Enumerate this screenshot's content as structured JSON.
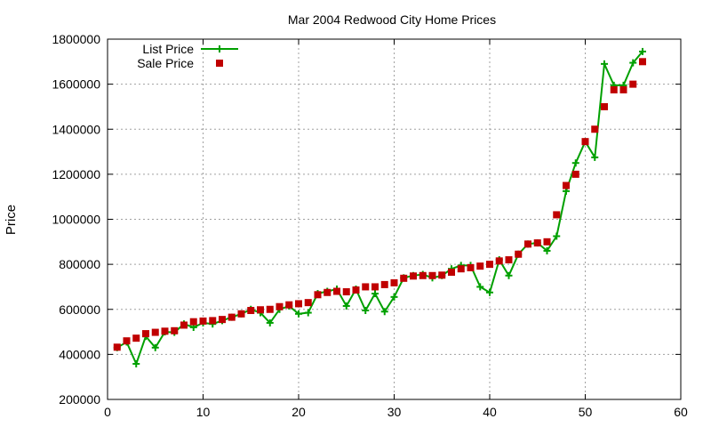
{
  "chart_data": {
    "type": "scatter",
    "title": "Mar 2004 Redwood City Home Prices",
    "xlabel": "",
    "ylabel": "Price",
    "xlim": [
      0,
      60
    ],
    "ylim": [
      200000,
      1800000
    ],
    "x_ticks": [
      "0",
      "10",
      "20",
      "30",
      "40",
      "50",
      "60"
    ],
    "y_ticks": [
      "200000",
      "400000",
      "600000",
      "800000",
      "1000000",
      "1200000",
      "1400000",
      "1600000",
      "1800000"
    ],
    "grid": true,
    "legend_position": "top-left",
    "series": [
      {
        "name": "List Price",
        "style": "line+cross",
        "color": "#00a000",
        "x": [
          1,
          2,
          3,
          4,
          5,
          6,
          7,
          8,
          9,
          10,
          11,
          12,
          13,
          14,
          15,
          16,
          17,
          18,
          19,
          20,
          21,
          22,
          23,
          24,
          25,
          26,
          27,
          28,
          29,
          30,
          31,
          32,
          33,
          34,
          35,
          36,
          37,
          38,
          39,
          40,
          41,
          42,
          43,
          44,
          45,
          46,
          47,
          48,
          49,
          50,
          51,
          52,
          53,
          54,
          55,
          56
        ],
        "values": [
          430000,
          455000,
          358000,
          480000,
          430000,
          500000,
          498000,
          535000,
          520000,
          540000,
          535000,
          550000,
          565000,
          580000,
          600000,
          585000,
          540000,
          600000,
          615000,
          580000,
          585000,
          670000,
          680000,
          690000,
          615000,
          690000,
          595000,
          670000,
          590000,
          655000,
          740000,
          750000,
          755000,
          740000,
          750000,
          780000,
          795000,
          795000,
          700000,
          675000,
          820000,
          750000,
          845000,
          890000,
          895000,
          860000,
          925000,
          1125000,
          1250000,
          1345000,
          1275000,
          1690000,
          1595000,
          1595000,
          1695000,
          1745000
        ]
      },
      {
        "name": "Sale Price",
        "style": "square",
        "color": "#c00000",
        "x": [
          1,
          2,
          3,
          4,
          5,
          6,
          7,
          8,
          9,
          10,
          11,
          12,
          13,
          14,
          15,
          16,
          17,
          18,
          19,
          20,
          21,
          22,
          23,
          24,
          25,
          26,
          27,
          28,
          29,
          30,
          31,
          32,
          33,
          34,
          35,
          36,
          37,
          38,
          39,
          40,
          41,
          42,
          43,
          44,
          45,
          46,
          47,
          48,
          49,
          50,
          51,
          52,
          53,
          54,
          55,
          56
        ],
        "values": [
          432000,
          460000,
          472000,
          492000,
          498000,
          503000,
          505000,
          530000,
          545000,
          548000,
          550000,
          555000,
          565000,
          580000,
          595000,
          598000,
          600000,
          612000,
          620000,
          625000,
          630000,
          665000,
          675000,
          680000,
          678000,
          686000,
          700000,
          700000,
          710000,
          718000,
          738000,
          748000,
          750000,
          750000,
          752000,
          765000,
          780000,
          785000,
          792000,
          800000,
          815000,
          820000,
          845000,
          890000,
          895000,
          900000,
          1020000,
          1150000,
          1200000,
          1345000,
          1400000,
          1500000,
          1575000,
          1575000,
          1600000,
          1700000
        ]
      }
    ]
  }
}
